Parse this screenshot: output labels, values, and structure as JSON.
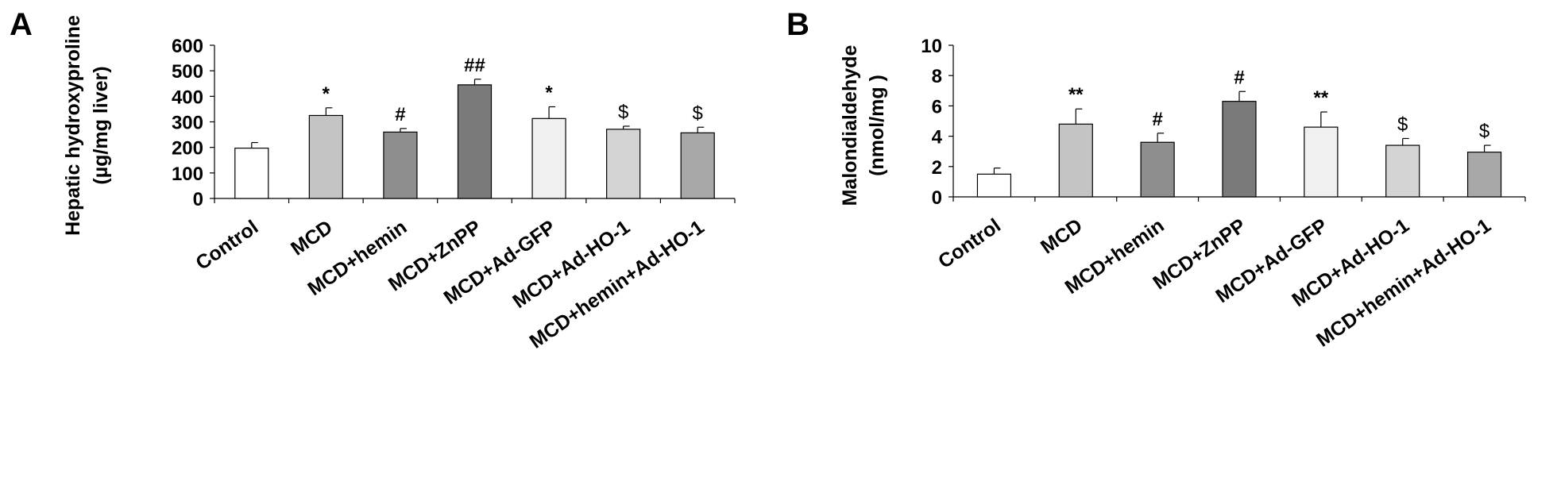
{
  "panels": [
    {
      "letter": "A",
      "ylabel_lines": [
        "Hepatic hydroxyproline",
        "(µg/mg liver)"
      ]
    },
    {
      "letter": "B",
      "ylabel_lines": [
        "Malondialdehyde",
        "(nmol/mg )"
      ]
    }
  ],
  "chart_data": [
    {
      "type": "bar",
      "title": "",
      "panel_label": "A",
      "ylabel": "Hepatic hydroxyproline (µg/mg liver)",
      "xlabel": "",
      "ylim": [
        0,
        600
      ],
      "yticks": [
        0,
        100,
        200,
        300,
        400,
        500,
        600
      ],
      "categories": [
        "Control",
        "MCD",
        "MCD+hemin",
        "MCD+ZnPP",
        "MCD+Ad-GFP",
        "MCD+Ad-HO-1",
        "MCD+hemin+Ad-HO-1"
      ],
      "values": [
        197,
        325,
        260,
        445,
        313,
        271,
        257
      ],
      "errors": [
        22,
        30,
        14,
        22,
        46,
        12,
        22
      ],
      "annotations": [
        "",
        "*",
        "#",
        "##",
        "*",
        "$",
        "$"
      ],
      "bar_colors": [
        "#ffffff",
        "#c4c4c4",
        "#8e8e8e",
        "#7a7a7a",
        "#f0f0f0",
        "#d4d4d4",
        "#a8a8a8"
      ],
      "grid": false
    },
    {
      "type": "bar",
      "title": "",
      "panel_label": "B",
      "ylabel": "Malondialdehyde (nmol/mg )",
      "xlabel": "",
      "ylim": [
        0,
        10
      ],
      "yticks": [
        0,
        2,
        4,
        6,
        8,
        10
      ],
      "categories": [
        "Control",
        "MCD",
        "MCD+hemin",
        "MCD+ZnPP",
        "MCD+Ad-GFP",
        "MCD+Ad-HO-1",
        "MCD+hemin+Ad-HO-1"
      ],
      "values": [
        1.5,
        4.8,
        3.6,
        6.3,
        4.6,
        3.4,
        2.95
      ],
      "errors": [
        0.4,
        1.0,
        0.6,
        0.65,
        1.0,
        0.45,
        0.45
      ],
      "annotations": [
        "",
        "**",
        "#",
        "#",
        "**",
        "$",
        "$"
      ],
      "bar_colors": [
        "#ffffff",
        "#c4c4c4",
        "#8e8e8e",
        "#7a7a7a",
        "#f0f0f0",
        "#d4d4d4",
        "#a8a8a8"
      ],
      "grid": false
    }
  ]
}
